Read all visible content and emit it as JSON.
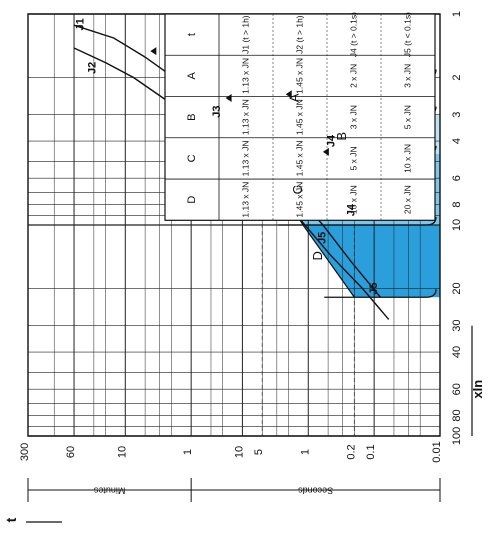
{
  "chart_data": {
    "type": "line",
    "title": "",
    "x_axis": {
      "label": "xIn",
      "scale": "log",
      "range": [
        1,
        100
      ],
      "tick_labels": [
        "1",
        "2",
        "3",
        "4",
        "6",
        "8",
        "10",
        "20",
        "30",
        "40",
        "60",
        "80",
        "100"
      ]
    },
    "y_axis": {
      "label": "t",
      "scale": "log",
      "range_seconds": [
        0.01,
        18000
      ],
      "minutes_label": "Minutes",
      "seconds_label": "Seconds",
      "minutes_tick_labels": [
        "300",
        "60",
        "10",
        "1"
      ],
      "seconds_tick_labels": [
        "10",
        "5",
        "1",
        "0.2",
        "0.1",
        "0.01"
      ]
    },
    "series": [
      {
        "name": "J1",
        "x": [
          1.13,
          1.3,
          1.6,
          2.0,
          2.5,
          3.2,
          4.5,
          6.5,
          10,
          15,
          22
        ],
        "y": [
          3600,
          900,
          300,
          110,
          45,
          18,
          6,
          2,
          0.6,
          0.22,
          0.08
        ]
      },
      {
        "name": "J2",
        "x": [
          1.45,
          1.7,
          2.0,
          2.5,
          3.2,
          4.2,
          6.0,
          9.0,
          14,
          20,
          28
        ],
        "y": [
          3600,
          1200,
          450,
          160,
          55,
          18,
          5,
          1.5,
          0.45,
          0.15,
          0.06
        ]
      }
    ],
    "regions": [
      {
        "name": "A",
        "x_start": 2,
        "t_max_s": 2
      },
      {
        "name": "B",
        "x_start": 3,
        "t_max_s": 0.3
      },
      {
        "name": "C",
        "x_start": 5,
        "t_max_s": 2
      },
      {
        "name": "D",
        "x_start": 10,
        "t_max_s": 1
      }
    ],
    "annotations": [
      "J1",
      "J2",
      "J3",
      "J4",
      "J4",
      "J5",
      "J5"
    ],
    "table": {
      "header": [
        "t",
        "A",
        "B",
        "C",
        "D"
      ],
      "rows": [
        [
          "J1 (t > 1h)",
          "1.13 x JN",
          "1.13 x JN",
          "1.13 x JN",
          "1.13 x JN"
        ],
        [
          "J2 (t > 1h)",
          "1.45 x JN",
          "1.45 x JN",
          "1.45 x JN",
          "1.45 x JN"
        ],
        [
          "J4 (t > 0.1s)",
          "2 x JN",
          "3 x JN",
          "5 x JN",
          "10 x JN"
        ],
        [
          "J5 (t < 0.1s)",
          "3 x JN",
          "5 x JN",
          "10 x JN",
          "20 x JN"
        ]
      ]
    },
    "grid": true,
    "legend": "none",
    "colors": {
      "fill_light": "#bfe3f6",
      "fill_medium": "#7cc6ec",
      "fill_dark": "#2a9fdc",
      "line": "#111111"
    }
  }
}
